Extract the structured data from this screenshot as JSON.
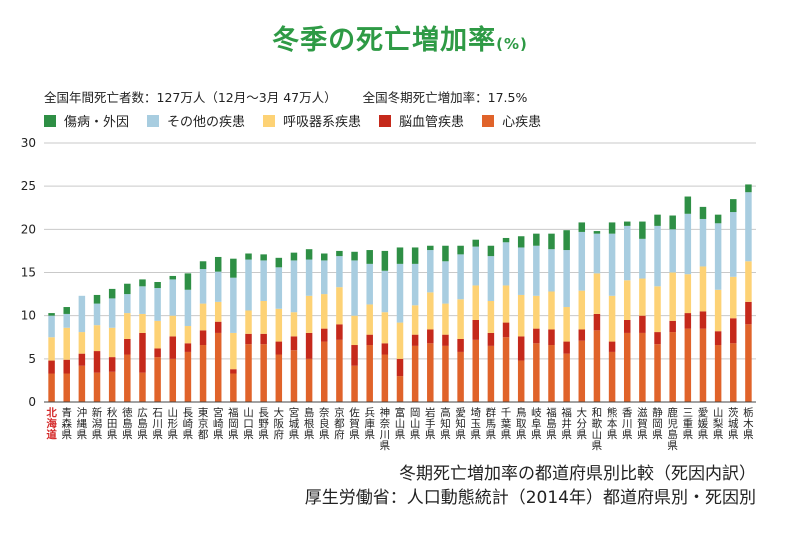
{
  "title": "冬季の死亡増加率",
  "title_unit": "(%)",
  "stats": {
    "deaths": "全国年間死亡者数：127万人（12月〜3月 47万人）",
    "increase": "全国冬期死亡増加率：17.5%"
  },
  "footer": {
    "line1": "冬期死亡増加率の都道府県別比較（死因内訳）",
    "line2": "厚生労働省：人口動態統計（2014年）都道府県別・死因別"
  },
  "chart_data": {
    "type": "bar",
    "stacked": true,
    "title": "冬季の死亡増加率",
    "xlabel": "",
    "ylabel": "%",
    "ylim": [
      0,
      30
    ],
    "yticks": [
      0,
      5,
      10,
      15,
      20,
      25,
      30
    ],
    "grid": true,
    "legend_position": "top-left",
    "highlight_category": "北海道",
    "highlight_color": "#d42a2a",
    "categories": [
      "北海道",
      "青森県",
      "沖縄県",
      "新潟県",
      "秋田県",
      "徳島県",
      "広島県",
      "石川県",
      "山形県",
      "長崎県",
      "東京都",
      "宮崎県",
      "福岡県",
      "山口県",
      "長野県",
      "大阪府",
      "宮城県",
      "島根県",
      "奈良県",
      "京都府",
      "佐賀県",
      "兵庫県",
      "神奈川県",
      "富山県",
      "岡山県",
      "岩手県",
      "高知県",
      "愛知県",
      "埼玉県",
      "群馬県",
      "千葉県",
      "鳥取県",
      "岐阜県",
      "福島県",
      "福井県",
      "大分県",
      "和歌山県",
      "熊本県",
      "香川県",
      "滋賀県",
      "静岡県",
      "鹿児島県",
      "三重県",
      "愛媛県",
      "山梨県",
      "茨城県",
      "栃木県"
    ],
    "series": [
      {
        "name": "心疾患",
        "color": "#e0632a",
        "values": [
          3.3,
          3.3,
          4.2,
          3.4,
          3.5,
          5.5,
          3.4,
          5.2,
          5.0,
          5.8,
          6.6,
          8.0,
          3.3,
          6.7,
          6.7,
          5.5,
          6.0,
          5.0,
          7.0,
          7.2,
          4.2,
          6.6,
          5.5,
          3.0,
          6.5,
          6.8,
          6.5,
          5.8,
          7.2,
          6.5,
          7.5,
          4.8,
          6.8,
          6.6,
          5.6,
          7.1,
          8.3,
          5.8,
          8.0,
          8.0,
          6.7,
          8.1,
          8.5,
          8.5,
          6.6,
          6.8,
          9.0
        ]
      },
      {
        "name": "脳血管疾患",
        "color": "#c5291b",
        "values": [
          1.5,
          1.6,
          1.4,
          2.5,
          1.7,
          1.8,
          4.6,
          1.0,
          2.6,
          1.0,
          1.7,
          1.3,
          0.5,
          1.2,
          1.2,
          1.5,
          1.6,
          3.0,
          1.5,
          1.8,
          2.4,
          1.2,
          1.3,
          2.0,
          1.3,
          1.6,
          1.3,
          1.5,
          2.3,
          1.5,
          1.7,
          2.8,
          1.7,
          1.8,
          1.4,
          1.3,
          1.9,
          1.2,
          1.5,
          2.0,
          1.4,
          1.3,
          1.8,
          2.0,
          1.6,
          2.9,
          2.6
        ]
      },
      {
        "name": "呼吸器系疾患",
        "color": "#fdd275",
        "values": [
          2.7,
          3.7,
          2.5,
          3.0,
          3.4,
          3.0,
          2.2,
          3.2,
          2.4,
          2.0,
          3.1,
          2.3,
          4.2,
          2.7,
          3.8,
          3.8,
          2.8,
          4.3,
          4.0,
          4.3,
          3.4,
          3.5,
          3.6,
          4.2,
          3.4,
          4.3,
          3.6,
          4.6,
          4.0,
          3.7,
          4.3,
          4.8,
          3.8,
          4.4,
          4.0,
          4.5,
          4.7,
          5.3,
          4.6,
          4.3,
          5.3,
          5.6,
          4.5,
          5.2,
          4.8,
          4.8,
          4.7
        ]
      },
      {
        "name": "その他の疾患",
        "color": "#a8cde0",
        "values": [
          2.5,
          1.6,
          4.2,
          2.5,
          3.4,
          2.2,
          3.2,
          3.8,
          4.2,
          4.2,
          4.0,
          3.5,
          6.4,
          5.9,
          4.7,
          4.8,
          6.0,
          4.2,
          3.9,
          3.6,
          6.4,
          4.7,
          4.8,
          6.8,
          4.8,
          4.9,
          4.9,
          5.2,
          4.5,
          5.2,
          5.0,
          5.5,
          5.8,
          4.9,
          6.6,
          6.8,
          4.6,
          7.2,
          6.3,
          4.6,
          7.0,
          5.0,
          7.0,
          5.5,
          7.7,
          7.5,
          8.0
        ]
      },
      {
        "name": "傷病・外因",
        "color": "#2e8f45",
        "values": [
          0.3,
          0.8,
          0.0,
          1.0,
          1.1,
          1.2,
          0.8,
          0.7,
          0.4,
          1.9,
          0.9,
          1.7,
          2.2,
          0.7,
          0.7,
          1.1,
          0.9,
          1.2,
          0.8,
          0.6,
          1.0,
          1.6,
          2.3,
          1.9,
          1.9,
          0.5,
          1.8,
          1.0,
          0.8,
          1.2,
          0.5,
          1.3,
          1.4,
          1.8,
          2.3,
          1.1,
          0.3,
          1.3,
          0.5,
          2.0,
          1.3,
          1.6,
          2.0,
          1.4,
          1.0,
          1.5,
          0.9
        ]
      }
    ]
  }
}
